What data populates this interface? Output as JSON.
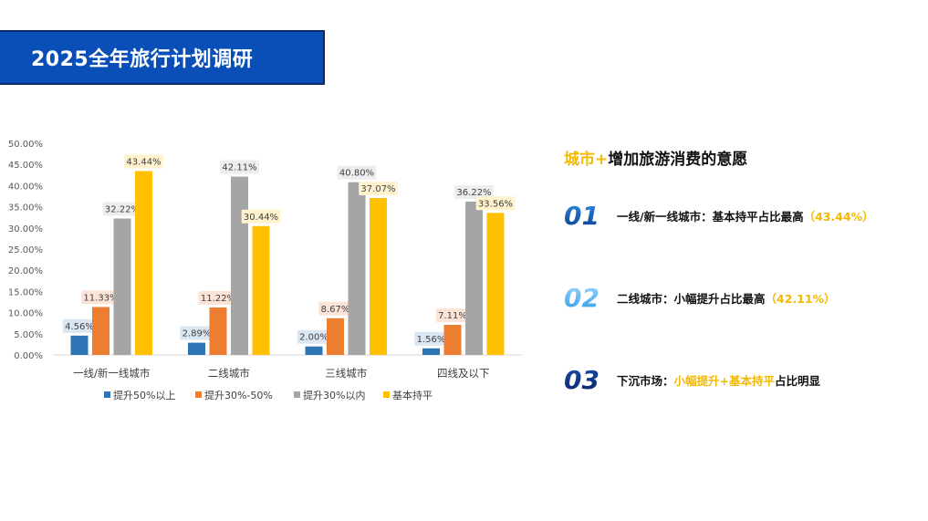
{
  "title": "2025全年旅行计划调研",
  "chart_data": {
    "type": "bar",
    "categories": [
      "一线/新一线城市",
      "二线城市",
      "三线城市",
      "四线及以下"
    ],
    "series": [
      {
        "name": "提升50%以上",
        "color": "#2e75b6",
        "values": [
          4.56,
          2.89,
          2.0,
          1.56
        ],
        "labels": [
          "4.56%",
          "2.89%",
          "2.00%",
          "1.56%"
        ]
      },
      {
        "name": "提升30%-50%",
        "color": "#ed7d31",
        "values": [
          11.33,
          11.22,
          8.67,
          7.11
        ],
        "labels": [
          "11.33%",
          "11.22%",
          "8.67%",
          "7.11%"
        ]
      },
      {
        "name": "提升30%以内",
        "color": "#a5a5a5",
        "values": [
          32.22,
          42.11,
          40.8,
          36.22
        ],
        "labels": [
          "32.22%",
          "42.11%",
          "40.80%",
          "36.22%"
        ]
      },
      {
        "name": "基本持平",
        "color": "#ffc000",
        "values": [
          43.44,
          30.44,
          37.07,
          33.56
        ],
        "labels": [
          "43.44%",
          "30.44%",
          "37.07%",
          "33.56%"
        ]
      }
    ],
    "ylim": [
      0,
      50
    ],
    "yticks": [
      "0.00%",
      "5.00%",
      "10.00%",
      "15.00%",
      "20.00%",
      "25.00%",
      "30.00%",
      "35.00%",
      "40.00%",
      "45.00%",
      "50.00%"
    ],
    "legend_position": "bottom",
    "grid": false
  },
  "panel": {
    "heading_highlight": "城市+",
    "heading_rest": "增加旅游消费的意愿",
    "points": [
      {
        "num": "01",
        "text": "一线/新一线城市：基本持平占比最高",
        "accent": "（43.44%）",
        "accent_first": false
      },
      {
        "num": "02",
        "text": "二线城市：小幅提升占比最高",
        "accent": "（42.11%）",
        "accent_first": false
      },
      {
        "num": "03",
        "prefix": "下沉市场：",
        "accent": "小幅提升+基本持平",
        "suffix": "占比明显"
      }
    ]
  }
}
